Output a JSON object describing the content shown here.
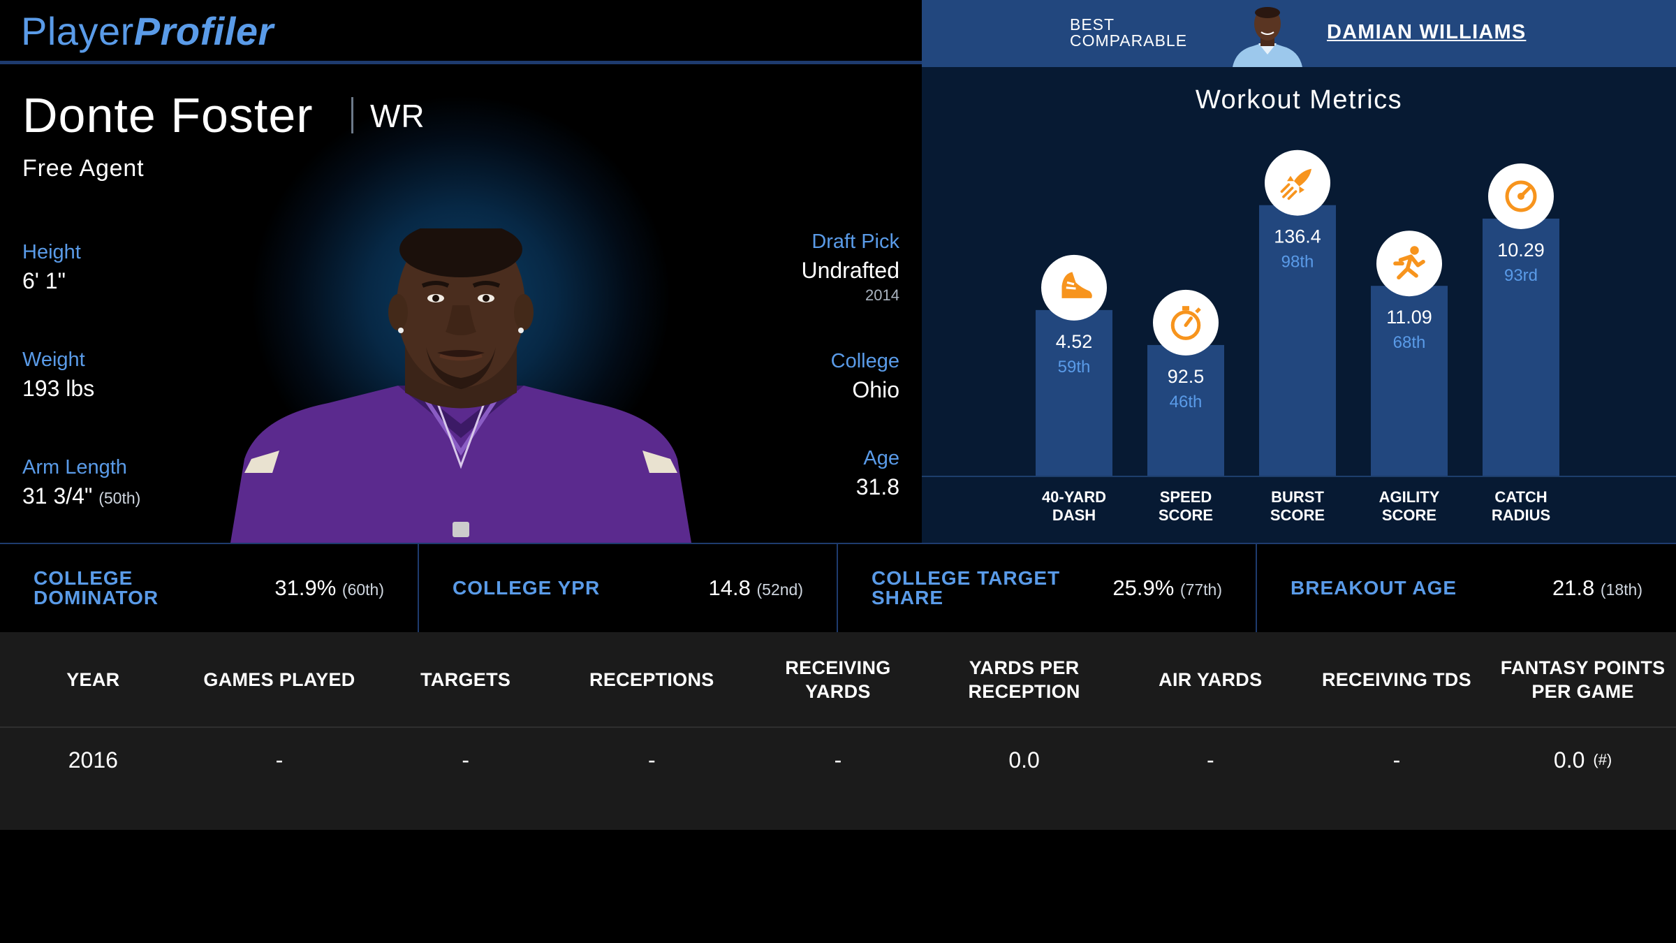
{
  "logo": {
    "part1": "Player",
    "part2": "Profiler"
  },
  "comparable": {
    "label": "BEST COMPARABLE",
    "name": "DAMIAN WILLIAMS"
  },
  "player": {
    "name": "Donte Foster",
    "position": "WR",
    "team": "Free Agent",
    "height": {
      "label": "Height",
      "value": "6' 1\""
    },
    "weight": {
      "label": "Weight",
      "value": "193 lbs"
    },
    "arm_length": {
      "label": "Arm Length",
      "value": "31 3/4\"",
      "pct": "(50th)"
    },
    "draft_pick": {
      "label": "Draft Pick",
      "value": "Undrafted",
      "year": "2014"
    },
    "college": {
      "label": "College",
      "value": "Ohio"
    },
    "age": {
      "label": "Age",
      "value": "31.8"
    }
  },
  "workout": {
    "title": "Workout Metrics",
    "metrics": [
      {
        "label": [
          "40-YARD",
          "DASH"
        ],
        "value": "4.52",
        "pct": "59th",
        "percentile": 59,
        "icon": "shoe-icon"
      },
      {
        "label": [
          "SPEED",
          "SCORE"
        ],
        "value": "92.5",
        "pct": "46th",
        "percentile": 46,
        "icon": "stopwatch-icon"
      },
      {
        "label": [
          "BURST",
          "SCORE"
        ],
        "value": "136.4",
        "pct": "98th",
        "percentile": 98,
        "icon": "rocket-icon"
      },
      {
        "label": [
          "AGILITY",
          "SCORE"
        ],
        "value": "11.09",
        "pct": "68th",
        "percentile": 68,
        "icon": "runner-icon"
      },
      {
        "label": [
          "CATCH",
          "RADIUS"
        ],
        "value": "10.29",
        "pct": "93rd",
        "percentile": 93,
        "icon": "target-icon"
      }
    ]
  },
  "advanced": [
    {
      "label": "COLLEGE DOMINATOR",
      "value": "31.9%",
      "pct": "(60th)"
    },
    {
      "label": "COLLEGE YPR",
      "value": "14.8",
      "pct": "(52nd)"
    },
    {
      "label": "COLLEGE TARGET SHARE",
      "value": "25.9%",
      "pct": "(77th)"
    },
    {
      "label": "BREAKOUT AGE",
      "value": "21.8",
      "pct": "(18th)"
    }
  ],
  "stats": {
    "headers": [
      "YEAR",
      "GAMES PLAYED",
      "TARGETS",
      "RECEPTIONS",
      "RECEIVING YARDS",
      "YARDS PER RECEPTION",
      "AIR YARDS",
      "RECEIVING TDS",
      "FANTASY POINTS PER GAME"
    ],
    "rows": [
      [
        "2016",
        "-",
        "-",
        "-",
        "-",
        "0.0",
        "-",
        "-",
        "0.0"
      ]
    ],
    "fppg_note": "(#)"
  },
  "colors": {
    "accent": "#5a9be8",
    "bar": "#22477e",
    "icon": "#f7941d",
    "panel": "#071a33"
  }
}
